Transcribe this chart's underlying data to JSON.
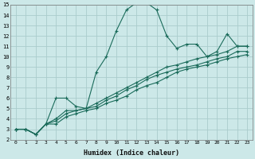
{
  "xlabel": "Humidex (Indice chaleur)",
  "bg_color": "#cce8e8",
  "grid_color": "#aacccc",
  "line_color": "#1a6b5a",
  "xlim": [
    -0.5,
    23.5
  ],
  "ylim": [
    2,
    15
  ],
  "xticks": [
    0,
    1,
    2,
    3,
    4,
    5,
    6,
    7,
    8,
    9,
    10,
    11,
    12,
    13,
    14,
    15,
    16,
    17,
    18,
    19,
    20,
    21,
    22,
    23
  ],
  "yticks": [
    2,
    3,
    4,
    5,
    6,
    7,
    8,
    9,
    10,
    11,
    12,
    13,
    14,
    15
  ],
  "series1_x": [
    0,
    1,
    2,
    3,
    4,
    5,
    6,
    7,
    8,
    9,
    10,
    11,
    12,
    13,
    14,
    15,
    16,
    17,
    18,
    19,
    20,
    21,
    22,
    23
  ],
  "series1_y": [
    3.0,
    3.0,
    2.5,
    3.5,
    6.0,
    6.0,
    5.2,
    5.0,
    8.5,
    10.0,
    12.5,
    14.5,
    15.2,
    15.2,
    14.5,
    12.0,
    10.8,
    11.2,
    11.2,
    10.0,
    10.5,
    12.2,
    11.0,
    11.0
  ],
  "series2_x": [
    0,
    1,
    2,
    3,
    4,
    5,
    6,
    7,
    8,
    9,
    10,
    11,
    12,
    13,
    14,
    15,
    16,
    17,
    18,
    19,
    20,
    21,
    22,
    23
  ],
  "series2_y": [
    3.0,
    3.0,
    2.5,
    3.5,
    4.0,
    4.8,
    4.8,
    5.0,
    5.5,
    6.0,
    6.5,
    7.0,
    7.5,
    8.0,
    8.5,
    9.0,
    9.2,
    9.5,
    9.8,
    10.0,
    10.2,
    10.5,
    11.0,
    11.0
  ],
  "series3_x": [
    0,
    1,
    2,
    3,
    4,
    5,
    6,
    7,
    8,
    9,
    10,
    11,
    12,
    13,
    14,
    15,
    16,
    17,
    18,
    19,
    20,
    21,
    22,
    23
  ],
  "series3_y": [
    3.0,
    3.0,
    2.5,
    3.5,
    3.8,
    4.5,
    4.8,
    5.0,
    5.2,
    5.8,
    6.2,
    6.8,
    7.2,
    7.8,
    8.2,
    8.5,
    8.8,
    9.0,
    9.2,
    9.5,
    9.8,
    10.0,
    10.5,
    10.5
  ],
  "series4_x": [
    0,
    1,
    2,
    3,
    4,
    5,
    6,
    7,
    8,
    9,
    10,
    11,
    12,
    13,
    14,
    15,
    16,
    17,
    18,
    19,
    20,
    21,
    22,
    23
  ],
  "series4_y": [
    3.0,
    3.0,
    2.5,
    3.5,
    3.5,
    4.2,
    4.5,
    4.8,
    5.0,
    5.5,
    5.8,
    6.2,
    6.8,
    7.2,
    7.5,
    8.0,
    8.5,
    8.8,
    9.0,
    9.2,
    9.5,
    9.8,
    10.0,
    10.2
  ]
}
